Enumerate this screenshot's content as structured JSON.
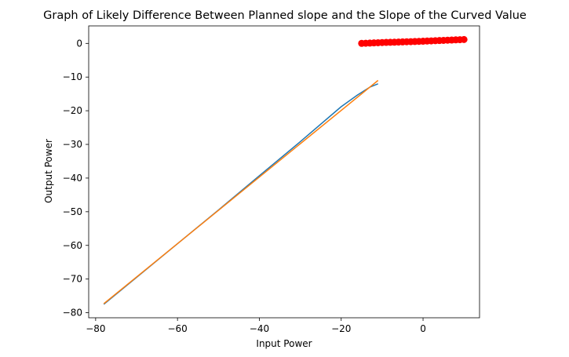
{
  "chart_data": {
    "type": "line",
    "title": "Graph of Likely Difference Between Planned slope and the Slope of the Curved Value",
    "xlabel": "Input Power",
    "ylabel": "Output Power",
    "xlim": [
      -81.7,
      13.8
    ],
    "ylim": [
      -81.5,
      5.2
    ],
    "xticks": [
      -80,
      -60,
      -40,
      -20,
      0
    ],
    "yticks": [
      0,
      -10,
      -20,
      -30,
      -40,
      -50,
      -60,
      -70,
      -80
    ],
    "grid": false,
    "colors": {
      "series1": "#1f77b4",
      "series2": "#ff7f0e",
      "series3": "#ff0000"
    },
    "series": [
      {
        "style": "line",
        "color": "#1f77b4",
        "x": [
          -78,
          -70,
          -60,
          -50,
          -40,
          -30,
          -20,
          -16,
          -13,
          -11
        ],
        "y": [
          -77.5,
          -69.5,
          -59.5,
          -49.5,
          -39.3,
          -29.2,
          -18.8,
          -15.3,
          -13.0,
          -12.0
        ]
      },
      {
        "style": "line",
        "color": "#ff7f0e",
        "x": [
          -78,
          -11
        ],
        "y": [
          -77.3,
          -11.0
        ]
      },
      {
        "style": "markers",
        "color": "#ff0000",
        "x": [
          -15,
          -14,
          -13,
          -12,
          -11,
          -10,
          -9,
          -8,
          -7,
          -6,
          -5,
          -4,
          -3,
          -2,
          -1,
          0,
          1,
          2,
          3,
          4,
          5,
          6,
          7,
          8,
          9,
          10
        ],
        "y": [
          0.0,
          0.05,
          0.1,
          0.15,
          0.2,
          0.25,
          0.3,
          0.33,
          0.36,
          0.4,
          0.44,
          0.48,
          0.52,
          0.56,
          0.6,
          0.65,
          0.7,
          0.75,
          0.8,
          0.85,
          0.9,
          0.95,
          1.0,
          1.05,
          1.1,
          1.15
        ]
      }
    ]
  }
}
